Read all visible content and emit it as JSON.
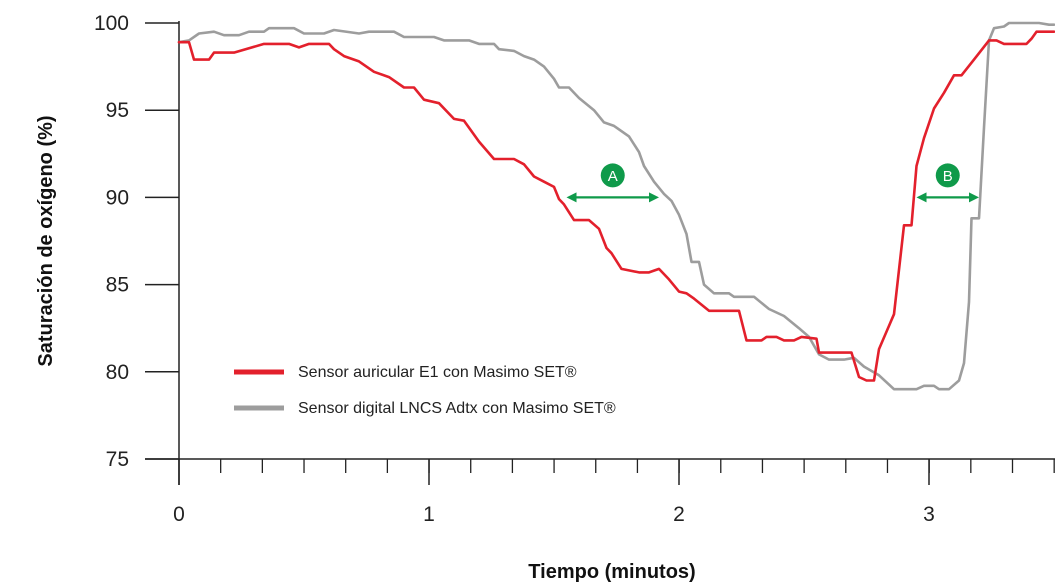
{
  "chart_data": {
    "type": "line",
    "xlabel": "Tiempo (minutos)",
    "ylabel": "Saturación de oxígeno (%)",
    "xlim": [
      0,
      3.5
    ],
    "ylim": [
      75,
      100
    ],
    "x_ticks": [
      0,
      1,
      2,
      3
    ],
    "x_tick_labels": [
      "0",
      "1",
      "2",
      "3"
    ],
    "x_minor_step": 0.1667,
    "y_ticks": [
      75,
      80,
      85,
      90,
      95,
      100
    ],
    "y_tick_labels": [
      "75",
      "80",
      "85",
      "90",
      "95",
      "100"
    ],
    "grid": false,
    "legend_position": "bottom-left",
    "series": [
      {
        "name": "Sensor auricular E1 con Masimo SET®",
        "color": "#e3202c",
        "points": [
          [
            0.0,
            98.9
          ],
          [
            0.04,
            98.9
          ],
          [
            0.06,
            97.9
          ],
          [
            0.12,
            97.9
          ],
          [
            0.14,
            98.3
          ],
          [
            0.22,
            98.3
          ],
          [
            0.34,
            98.8
          ],
          [
            0.44,
            98.8
          ],
          [
            0.48,
            98.6
          ],
          [
            0.52,
            98.8
          ],
          [
            0.58,
            98.8
          ],
          [
            0.6,
            98.8
          ],
          [
            0.62,
            98.5
          ],
          [
            0.66,
            98.1
          ],
          [
            0.72,
            97.8
          ],
          [
            0.78,
            97.2
          ],
          [
            0.84,
            96.9
          ],
          [
            0.9,
            96.3
          ],
          [
            0.94,
            96.3
          ],
          [
            0.98,
            95.6
          ],
          [
            1.04,
            95.4
          ],
          [
            1.1,
            94.5
          ],
          [
            1.14,
            94.4
          ],
          [
            1.2,
            93.2
          ],
          [
            1.26,
            92.2
          ],
          [
            1.34,
            92.2
          ],
          [
            1.38,
            91.9
          ],
          [
            1.42,
            91.2
          ],
          [
            1.46,
            90.9
          ],
          [
            1.5,
            90.6
          ],
          [
            1.52,
            89.9
          ],
          [
            1.54,
            89.6
          ],
          [
            1.58,
            88.7
          ],
          [
            1.64,
            88.7
          ],
          [
            1.68,
            88.2
          ],
          [
            1.71,
            87.1
          ],
          [
            1.73,
            86.8
          ],
          [
            1.77,
            85.9
          ],
          [
            1.84,
            85.7
          ],
          [
            1.88,
            85.7
          ],
          [
            1.92,
            85.9
          ],
          [
            1.96,
            85.3
          ],
          [
            2.0,
            84.6
          ],
          [
            2.03,
            84.5
          ],
          [
            2.06,
            84.2
          ],
          [
            2.12,
            83.5
          ],
          [
            2.24,
            83.5
          ],
          [
            2.27,
            81.8
          ],
          [
            2.33,
            81.8
          ],
          [
            2.35,
            82.0
          ],
          [
            2.39,
            82.0
          ],
          [
            2.42,
            81.8
          ],
          [
            2.46,
            81.8
          ],
          [
            2.49,
            82.0
          ],
          [
            2.55,
            81.9
          ],
          [
            2.56,
            81.1
          ],
          [
            2.66,
            81.1
          ],
          [
            2.69,
            81.1
          ],
          [
            2.72,
            79.7
          ],
          [
            2.75,
            79.5
          ],
          [
            2.78,
            79.5
          ],
          [
            2.8,
            81.3
          ],
          [
            2.86,
            83.3
          ],
          [
            2.9,
            88.4
          ],
          [
            2.93,
            88.4
          ],
          [
            2.95,
            91.8
          ],
          [
            2.98,
            93.4
          ],
          [
            3.02,
            95.1
          ],
          [
            3.06,
            96.0
          ],
          [
            3.1,
            97.0
          ],
          [
            3.13,
            97.0
          ],
          [
            3.18,
            97.9
          ],
          [
            3.24,
            99.0
          ],
          [
            3.27,
            99.0
          ],
          [
            3.3,
            98.8
          ],
          [
            3.39,
            98.8
          ],
          [
            3.41,
            99.1
          ],
          [
            3.43,
            99.5
          ],
          [
            3.5,
            99.5
          ]
        ]
      },
      {
        "name": "Sensor digital LNCS Adtx con Masimo SET®",
        "color": "#9d9d9d",
        "points": [
          [
            0.0,
            98.9
          ],
          [
            0.04,
            99.0
          ],
          [
            0.08,
            99.4
          ],
          [
            0.14,
            99.5
          ],
          [
            0.18,
            99.3
          ],
          [
            0.24,
            99.3
          ],
          [
            0.28,
            99.5
          ],
          [
            0.34,
            99.5
          ],
          [
            0.36,
            99.7
          ],
          [
            0.46,
            99.7
          ],
          [
            0.5,
            99.4
          ],
          [
            0.58,
            99.4
          ],
          [
            0.62,
            99.6
          ],
          [
            0.72,
            99.4
          ],
          [
            0.76,
            99.5
          ],
          [
            0.86,
            99.5
          ],
          [
            0.9,
            99.2
          ],
          [
            0.98,
            99.2
          ],
          [
            1.02,
            99.2
          ],
          [
            1.06,
            99.0
          ],
          [
            1.16,
            99.0
          ],
          [
            1.2,
            98.8
          ],
          [
            1.26,
            98.8
          ],
          [
            1.28,
            98.5
          ],
          [
            1.34,
            98.4
          ],
          [
            1.38,
            98.1
          ],
          [
            1.42,
            97.9
          ],
          [
            1.46,
            97.5
          ],
          [
            1.5,
            96.8
          ],
          [
            1.52,
            96.3
          ],
          [
            1.56,
            96.3
          ],
          [
            1.6,
            95.7
          ],
          [
            1.66,
            95.0
          ],
          [
            1.7,
            94.3
          ],
          [
            1.74,
            94.1
          ],
          [
            1.8,
            93.5
          ],
          [
            1.84,
            92.6
          ],
          [
            1.86,
            91.8
          ],
          [
            1.9,
            90.9
          ],
          [
            1.94,
            90.2
          ],
          [
            1.97,
            89.8
          ],
          [
            2.0,
            89.0
          ],
          [
            2.03,
            87.9
          ],
          [
            2.05,
            86.3
          ],
          [
            2.08,
            86.3
          ],
          [
            2.1,
            85.0
          ],
          [
            2.14,
            84.5
          ],
          [
            2.2,
            84.5
          ],
          [
            2.22,
            84.3
          ],
          [
            2.3,
            84.3
          ],
          [
            2.36,
            83.6
          ],
          [
            2.42,
            83.2
          ],
          [
            2.48,
            82.5
          ],
          [
            2.52,
            82.0
          ],
          [
            2.56,
            81.0
          ],
          [
            2.6,
            80.7
          ],
          [
            2.66,
            80.7
          ],
          [
            2.7,
            80.8
          ],
          [
            2.74,
            80.3
          ],
          [
            2.8,
            79.8
          ],
          [
            2.86,
            79.0
          ],
          [
            2.95,
            79.0
          ],
          [
            2.98,
            79.2
          ],
          [
            3.02,
            79.2
          ],
          [
            3.04,
            79.0
          ],
          [
            3.08,
            79.0
          ],
          [
            3.12,
            79.5
          ],
          [
            3.14,
            80.5
          ],
          [
            3.16,
            84.0
          ],
          [
            3.17,
            88.8
          ],
          [
            3.2,
            88.8
          ],
          [
            3.22,
            94.0
          ],
          [
            3.24,
            99.0
          ],
          [
            3.26,
            99.7
          ],
          [
            3.3,
            99.8
          ],
          [
            3.32,
            100.0
          ],
          [
            3.44,
            100.0
          ],
          [
            3.48,
            99.9
          ],
          [
            3.5,
            99.9
          ]
        ]
      }
    ],
    "annotations": [
      {
        "label": "A",
        "x_start": 1.55,
        "x_end": 1.92,
        "y": 90.0,
        "color": "#0f9a4a"
      },
      {
        "label": "B",
        "x_start": 2.95,
        "x_end": 3.2,
        "y": 90.0,
        "color": "#0f9a4a"
      }
    ]
  }
}
